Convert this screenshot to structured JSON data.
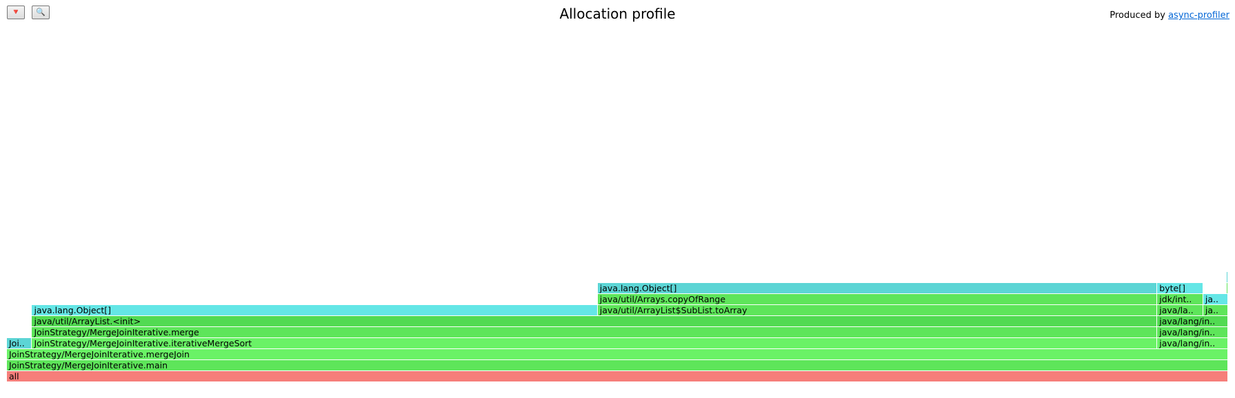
{
  "toolbar": {
    "reverse_label": "🔻",
    "search_label": "🔍"
  },
  "title": "Allocation profile",
  "credit": {
    "prefix": "Produced by ",
    "link_text": "async-profiler"
  },
  "colors": {
    "root": "#f67e7a",
    "green_a": "#5ee55a",
    "green_b": "#6af266",
    "green_c": "#52da52",
    "cyan_a": "#5cd5d5",
    "cyan_b": "#64e6e6"
  },
  "flame": {
    "total_samples": 1000,
    "frames": [
      {
        "level": 0,
        "start": 0,
        "width": 1000,
        "label": "all",
        "color": "root"
      },
      {
        "level": 1,
        "start": 0,
        "width": 1000,
        "label": "JoinStrategy/MergeJoinIterative.main",
        "color": "green_a"
      },
      {
        "level": 2,
        "start": 0,
        "width": 1000,
        "label": "JoinStrategy/MergeJoinIterative.mergeJoin",
        "color": "green_b"
      },
      {
        "level": 3,
        "start": 0,
        "width": 20.6,
        "label": "Joi..",
        "color": "cyan_a"
      },
      {
        "level": 3,
        "start": 20.6,
        "width": 921.4,
        "label": "JoinStrategy/MergeJoinIterative.iterativeMergeSort",
        "color": "green_b"
      },
      {
        "level": 3,
        "start": 942,
        "width": 58,
        "label": "java/lang/in..",
        "color": "green_b"
      },
      {
        "level": 4,
        "start": 20.6,
        "width": 921.4,
        "label": "JoinStrategy/MergeJoinIterative.merge",
        "color": "green_a"
      },
      {
        "level": 4,
        "start": 942,
        "width": 58,
        "label": "java/lang/in..",
        "color": "green_a"
      },
      {
        "level": 5,
        "start": 20.6,
        "width": 921.4,
        "label": "java/util/ArrayList.<init>",
        "color": "green_c"
      },
      {
        "level": 5,
        "start": 942,
        "width": 58,
        "label": "java/lang/in..",
        "color": "green_c"
      },
      {
        "level": 6,
        "start": 20.6,
        "width": 463.2,
        "label": "java.lang.Object[]",
        "color": "cyan_b"
      },
      {
        "level": 6,
        "start": 483.8,
        "width": 458.2,
        "label": "java/util/ArrayList$SubList.toArray",
        "color": "green_a"
      },
      {
        "level": 6,
        "start": 942,
        "width": 37.6,
        "label": "java/la..",
        "color": "green_a"
      },
      {
        "level": 6,
        "start": 979.6,
        "width": 20.4,
        "label": "ja..",
        "color": "green_a"
      },
      {
        "level": 7,
        "start": 483.8,
        "width": 458.2,
        "label": "java/util/Arrays.copyOfRange",
        "color": "green_a"
      },
      {
        "level": 7,
        "start": 942,
        "width": 37.6,
        "label": "jdk/int..",
        "color": "green_a"
      },
      {
        "level": 7,
        "start": 979.6,
        "width": 20.4,
        "label": "ja..",
        "color": "cyan_b"
      },
      {
        "level": 8,
        "start": 483.8,
        "width": 458.2,
        "label": "java.lang.Object[]",
        "color": "cyan_a"
      },
      {
        "level": 8,
        "start": 942,
        "width": 37.6,
        "label": "byte[]",
        "color": "cyan_b"
      },
      {
        "level": 8,
        "start": 998.6,
        "width": 1.4,
        "label": "",
        "color": "green_a"
      },
      {
        "level": 9,
        "start": 998.6,
        "width": 1.4,
        "label": "",
        "color": "cyan_a"
      }
    ]
  }
}
